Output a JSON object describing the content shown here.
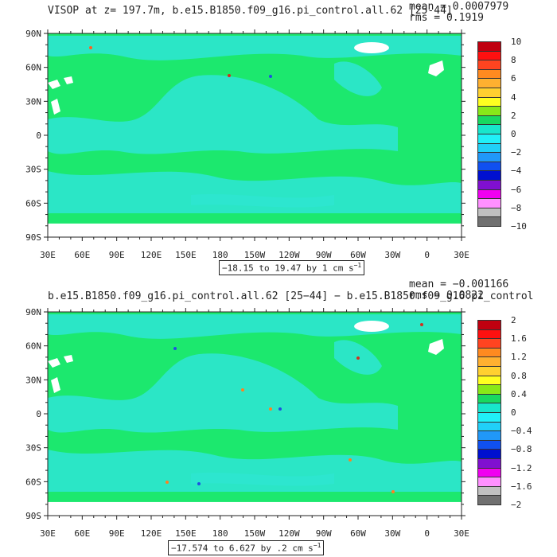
{
  "colors": {
    "ocean_fill": "#1ce86e",
    "shelf_fill": "#2ee6cf",
    "land_fill": "#ffffff",
    "frame": "#222222"
  },
  "axes": {
    "lat_labels": [
      "90N",
      "60N",
      "30N",
      "0",
      "30S",
      "60S",
      "90S"
    ],
    "lon_labels": [
      "30E",
      "60E",
      "90E",
      "120E",
      "150E",
      "180",
      "150W",
      "120W",
      "90W",
      "60W",
      "30W",
      "0",
      "30E"
    ]
  },
  "panels": [
    {
      "title": "VISOP at z= 197.7m, b.e15.B1850.f09_g16.pi_control.all.62 [25-44]",
      "mean_text": "mean = 0.0007979",
      "rms_text": "rms = 0.1919",
      "range_text": "−18.15 to 19.47 by 1 cm s",
      "range_unit_exp": "−1",
      "colorbar_labels": [
        "10",
        "8",
        "6",
        "4",
        "2",
        "0",
        "−2",
        "−4",
        "−6",
        "−8",
        "−10"
      ],
      "colorbar_colors": [
        "#c00010",
        "#ff1010",
        "#ff4420",
        "#ff8a20",
        "#ffb030",
        "#ffd030",
        "#ffff20",
        "#88e818",
        "#18d860",
        "#18e6cc",
        "#20f0f8",
        "#20d0f8",
        "#2098f8",
        "#1050f0",
        "#0010d0",
        "#8010d0",
        "#f000f0",
        "#ff90ff",
        "#c0c0c0",
        "#707070"
      ]
    },
    {
      "title": "b.e15.B1850.f09_g16.pi_control.all.62 [25−44] − b.e15.B1850.f09_g16.pi_control",
      "mean_text": "mean = −0.001166",
      "rms_text": "rms = 0.0822",
      "range_text": "−17.574 to 6.627 by .2 cm s",
      "range_unit_exp": "−1",
      "colorbar_labels": [
        "2",
        "1.6",
        "1.2",
        "0.8",
        "0.4",
        "0",
        "−0.4",
        "−0.8",
        "−1.2",
        "−1.6",
        "−2"
      ],
      "colorbar_colors": [
        "#c00010",
        "#ff1010",
        "#ff4420",
        "#ff8a20",
        "#ffb030",
        "#ffd030",
        "#ffff20",
        "#88e818",
        "#18d860",
        "#18e6cc",
        "#20f0f8",
        "#20d0f8",
        "#2098f8",
        "#1050f0",
        "#0010d0",
        "#8010d0",
        "#f000f0",
        "#ff90ff",
        "#c0c0c0",
        "#707070"
      ]
    }
  ]
}
